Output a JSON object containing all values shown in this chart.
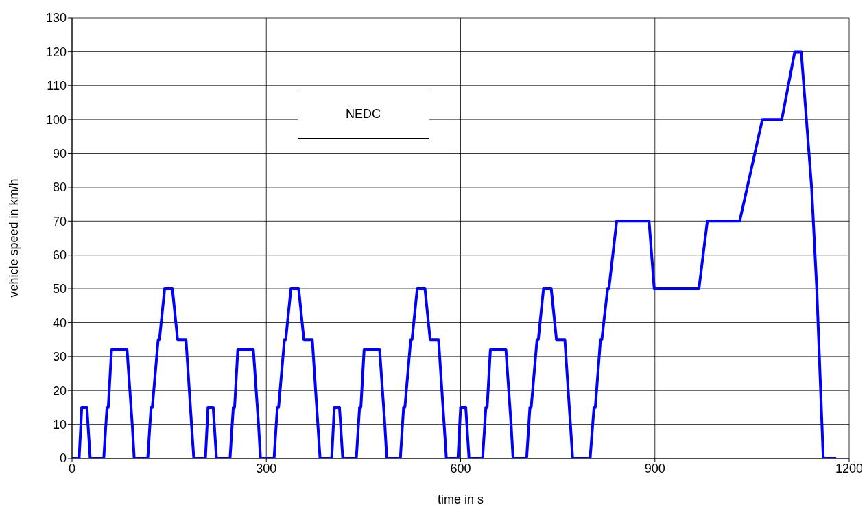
{
  "chart_data": {
    "type": "line",
    "xlabel": "time in s",
    "ylabel": "vehicle speed in km/h",
    "annotations": [
      "NEDC"
    ],
    "x": [
      0,
      11,
      15,
      23,
      28,
      49,
      54,
      56,
      61,
      85,
      93,
      96,
      117,
      122,
      124,
      133,
      135,
      143,
      155,
      163,
      176,
      188,
      195,
      206,
      210,
      218,
      223,
      244,
      249,
      251,
      256,
      280,
      288,
      291,
      312,
      317,
      319,
      328,
      330,
      338,
      350,
      358,
      371,
      383,
      390,
      401,
      405,
      413,
      418,
      439,
      444,
      446,
      451,
      475,
      483,
      486,
      507,
      512,
      514,
      523,
      525,
      533,
      545,
      553,
      566,
      578,
      585,
      596,
      600,
      608,
      613,
      634,
      639,
      641,
      646,
      670,
      678,
      681,
      702,
      707,
      709,
      718,
      720,
      728,
      740,
      748,
      761,
      773,
      780,
      800,
      806,
      808,
      816,
      818,
      827,
      829,
      841,
      891,
      899,
      968,
      981,
      1031,
      1066,
      1096,
      1116,
      1126,
      1142,
      1150,
      1160,
      1180
    ],
    "series": [
      {
        "color": "#0000ff",
        "values": [
          0,
          0,
          15,
          15,
          0,
          0,
          15,
          15,
          32,
          32,
          10,
          0,
          0,
          15,
          15,
          35,
          35,
          50,
          50,
          35,
          35,
          0,
          0,
          0,
          15,
          15,
          0,
          0,
          15,
          15,
          32,
          32,
          10,
          0,
          0,
          15,
          15,
          35,
          35,
          50,
          50,
          35,
          35,
          0,
          0,
          0,
          15,
          15,
          0,
          0,
          15,
          15,
          32,
          32,
          10,
          0,
          0,
          15,
          15,
          35,
          35,
          50,
          50,
          35,
          35,
          0,
          0,
          0,
          15,
          15,
          0,
          0,
          15,
          15,
          32,
          32,
          10,
          0,
          0,
          15,
          15,
          35,
          35,
          50,
          50,
          35,
          35,
          0,
          0,
          0,
          15,
          15,
          35,
          35,
          50,
          50,
          70,
          70,
          50,
          50,
          70,
          70,
          100,
          100,
          120,
          120,
          80,
          50,
          0,
          0
        ]
      }
    ],
    "xlim": [
      0,
      1200
    ],
    "xticks": [
      0,
      300,
      600,
      900,
      1200
    ],
    "ylim": [
      0,
      130
    ],
    "yticks": [
      0,
      10,
      20,
      30,
      40,
      50,
      60,
      70,
      80,
      90,
      100,
      110,
      120,
      130
    ],
    "grid": true,
    "marker": "none",
    "line_style": "solid"
  }
}
